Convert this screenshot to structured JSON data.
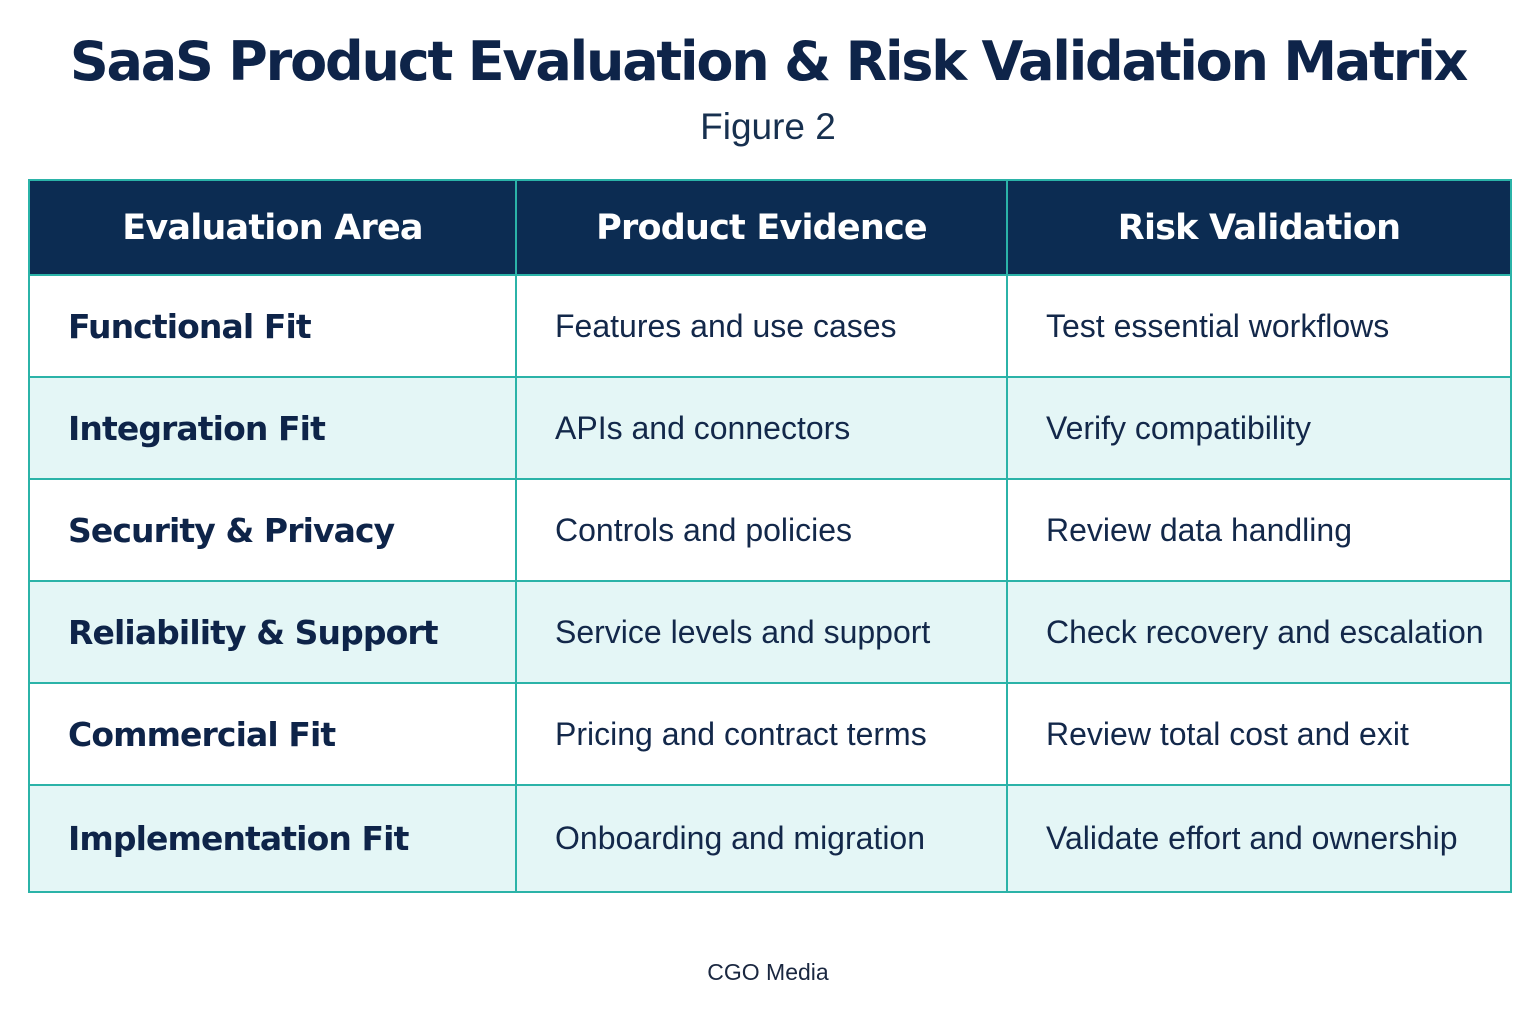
{
  "header": {
    "title": "SaaS Product Evaluation & Risk Validation Matrix",
    "subtitle": "Figure 2"
  },
  "table": {
    "columns": [
      "Evaluation Area",
      "Product Evidence",
      "Risk Validation"
    ],
    "rows": [
      {
        "area": "Functional Fit",
        "evidence": "Features and use cases",
        "validation": "Test essential workflows"
      },
      {
        "area": "Integration Fit",
        "evidence": "APIs and connectors",
        "validation": "Verify compatibility"
      },
      {
        "area": "Security & Privacy",
        "evidence": "Controls and policies",
        "validation": "Review data handling"
      },
      {
        "area": "Reliability & Support",
        "evidence": "Service levels and support",
        "validation": "Check recovery and escalation"
      },
      {
        "area": "Commercial Fit",
        "evidence": "Pricing and contract terms",
        "validation": "Review total cost and exit"
      },
      {
        "area": "Implementation Fit",
        "evidence": "Onboarding and migration",
        "validation": "Validate effort and ownership"
      }
    ]
  },
  "footer": {
    "source": "CGO Media"
  },
  "colors": {
    "header_background": "#0c2c52",
    "grid_line": "#2bb3a8",
    "shaded_row": "#e4f6f6",
    "text": "#0e2449"
  }
}
